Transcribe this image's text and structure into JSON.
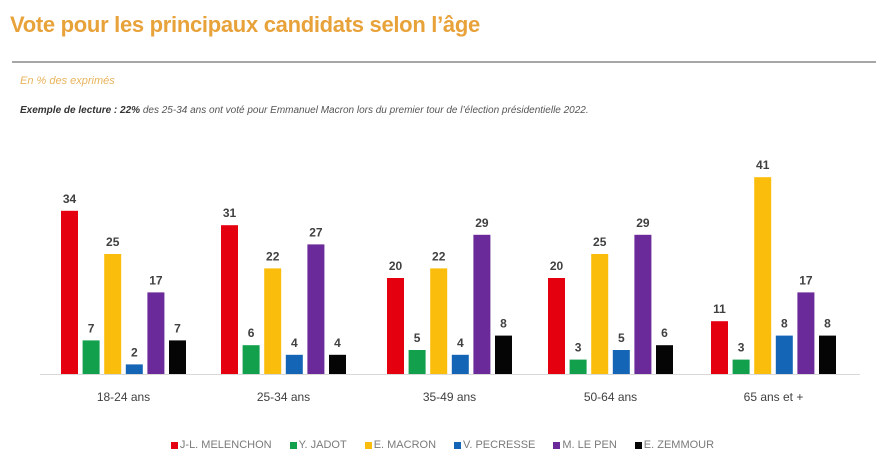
{
  "header": {
    "title": "Vote pour les principaux candidats selon l’âge",
    "subtitle": "En % des exprimés",
    "reading_label": "Exemple de lecture :",
    "reading_value": "22%",
    "reading_text": "des 25-34 ans ont voté pour Emmanuel Macron lors du premier tour de l’élection présidentielle 2022."
  },
  "chart_data": {
    "type": "bar",
    "title": "Vote pour les principaux candidats selon l’âge",
    "subtitle": "En % des exprimés",
    "xlabel": "",
    "ylabel": "",
    "ylim": [
      0,
      45
    ],
    "grid": false,
    "legend_position": "bottom",
    "categories": [
      "18-24 ans",
      "25-34 ans",
      "35-49 ans",
      "50-64 ans",
      "65 ans et +"
    ],
    "series": [
      {
        "name": "J-L. MELENCHON",
        "color": "#e5000f",
        "values": [
          34,
          31,
          20,
          20,
          11
        ]
      },
      {
        "name": "Y. JADOT",
        "color": "#12a04c",
        "values": [
          7,
          6,
          5,
          3,
          3
        ]
      },
      {
        "name": "E. MACRON",
        "color": "#fbbd0b",
        "values": [
          25,
          22,
          22,
          25,
          41
        ]
      },
      {
        "name": "V. PECRESSE",
        "color": "#1565b7",
        "values": [
          2,
          4,
          4,
          5,
          8
        ]
      },
      {
        "name": "M. LE PEN",
        "color": "#6a2a9a",
        "values": [
          17,
          27,
          29,
          29,
          17
        ]
      },
      {
        "name": "E. ZEMMOUR",
        "color": "#050505",
        "values": [
          7,
          4,
          8,
          6,
          8
        ]
      }
    ]
  }
}
